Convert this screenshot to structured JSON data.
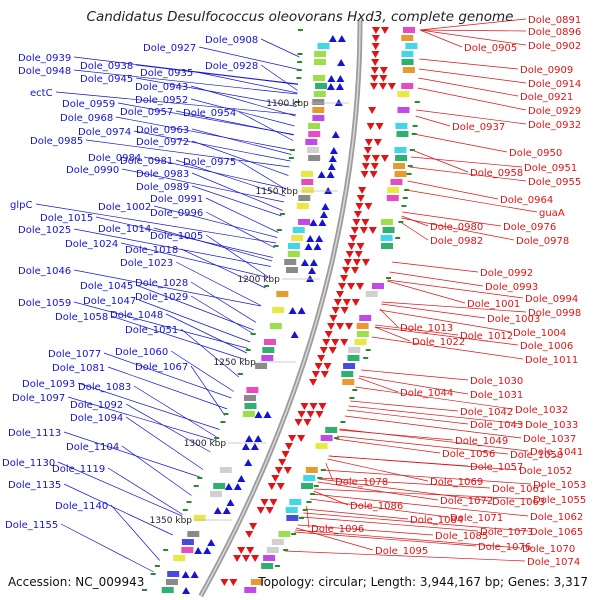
{
  "title": "Candidatus Desulfococcus oleovorans Hxd3, complete genome",
  "accession": "Accession: NC_009943",
  "summary": "Topology: circular; Length: 3,944,167 bp; Genes: 3,317",
  "colors": {
    "left_strand": "#1414d6",
    "right_strand": "#e01414",
    "backbone": "#9c9c9c"
  },
  "kbp_ticks": [
    "1100 kbp",
    "1150 kbp",
    "1200 kbp",
    "1250 kbp",
    "1300 kbp",
    "1350 kbp"
  ],
  "left_labels": [
    "Dole_0908",
    "Dole_0927",
    "Dole_0939",
    "Dole_0938",
    "Dole_0948",
    "Dole_0945",
    "Dole_0935",
    "Dole_0928",
    "Dole_0943",
    "ectC",
    "Dole_0952",
    "Dole_0959",
    "Dole_0957",
    "Dole_0954",
    "Dole_0968",
    "Dole_0963",
    "Dole_0974",
    "Dole_0972",
    "Dole_0985",
    "Dole_0984",
    "Dole_0981",
    "Dole_0975",
    "Dole_0990",
    "Dole_0983",
    "Dole_0989",
    "Dole_0991",
    "glpC",
    "Dole_1002",
    "Dole_0996",
    "Dole_1015",
    "Dole_1014",
    "Dole_1025",
    "Dole_1005",
    "Dole_1024",
    "Dole_1018",
    "Dole_1023",
    "Dole_1046",
    "Dole_1028",
    "Dole_1045",
    "Dole_1029",
    "Dole_1047",
    "Dole_1059",
    "Dole_1048",
    "Dole_1058",
    "Dole_1051",
    "Dole_1060",
    "Dole_1077",
    "Dole_1067",
    "Dole_1081",
    "Dole_1093",
    "Dole_1083",
    "Dole_1097",
    "Dole_1092",
    "Dole_1094",
    "Dole_1113",
    "Dole_1104",
    "Dole_1130",
    "Dole_1119",
    "Dole_1135",
    "Dole_1140",
    "Dole_1155"
  ],
  "right_labels": [
    "Dole_0891",
    "Dole_0896",
    "Dole_0905",
    "Dole_0902",
    "Dole_0909",
    "Dole_0914",
    "Dole_0921",
    "Dole_0929",
    "Dole_0937",
    "Dole_0932",
    "Dole_0950",
    "Dole_0958",
    "Dole_0951",
    "Dole_0955",
    "Dole_0964",
    "guaA",
    "Dole_0980",
    "Dole_0976",
    "Dole_0982",
    "Dole_0978",
    "Dole_0992",
    "Dole_0993",
    "Dole_0994",
    "Dole_1001",
    "Dole_0998",
    "Dole_1003",
    "Dole_1013",
    "Dole_1004",
    "Dole_1012",
    "Dole_1022",
    "Dole_1006",
    "Dole_1011",
    "Dole_1030",
    "Dole_1044",
    "Dole_1031",
    "Dole_1032",
    "Dole_1042",
    "Dole_1043",
    "Dole_1033",
    "Dole_1037",
    "Dole_1049",
    "Dole_1056",
    "Dole_1050",
    "Dole_1041",
    "Dole_1057",
    "Dole_1052",
    "Dole_1078",
    "Dole_1069",
    "Dole_1061",
    "Dole_1053",
    "Dole_1072",
    "Dole_1063",
    "Dole_1055",
    "Dole_1086",
    "Dole_1071",
    "Dole_1062",
    "Dole_1084",
    "Dole_1073",
    "Dole_1065",
    "Dole_1096",
    "Dole_1085",
    "Dole_1076",
    "Dole_1070",
    "Dole_1095",
    "Dole_1074"
  ]
}
